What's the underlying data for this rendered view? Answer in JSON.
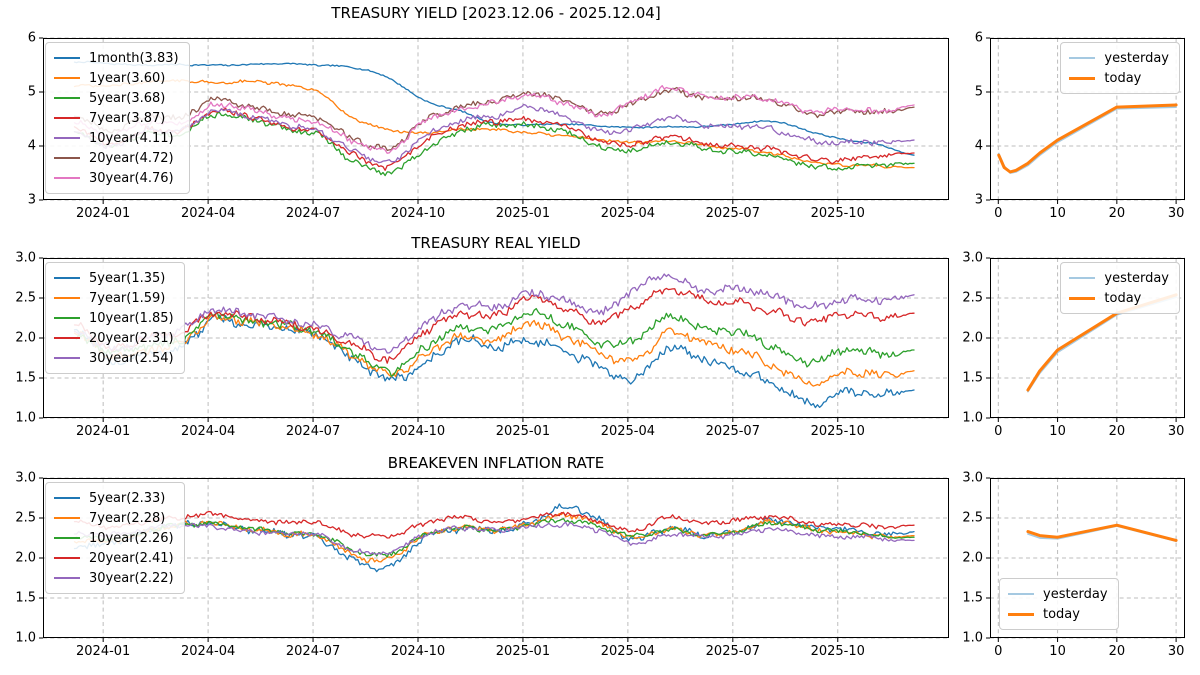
{
  "figure": {
    "background": "#ffffff"
  },
  "palette": {
    "blue": "#1f77b4",
    "orange": "#ff7f0e",
    "green": "#2ca02c",
    "red": "#d62728",
    "purple": "#9467bd",
    "brown": "#8c564b",
    "pink": "#e377c2",
    "yesterday_line": "#a5c9e1",
    "today_line": "#ff7f0e",
    "grid": "#bdbdbd",
    "spine": "#000000"
  },
  "chart_data": [
    {
      "id": "treasury-yield-main",
      "type": "line",
      "title": "TREASURY YIELD [2023.12.06 - 2025.12.04]",
      "x_unit": "months since 2023-12-06",
      "x": [
        0,
        1,
        2,
        3,
        4,
        5,
        6,
        7,
        8,
        9,
        10,
        11,
        12,
        13,
        14,
        15,
        16,
        17,
        18,
        19,
        20,
        21,
        22,
        23,
        24
      ],
      "xlim": [
        -0.9,
        25.0
      ],
      "xticks": [
        0.82,
        3.82,
        6.82,
        9.82,
        12.82,
        15.82,
        18.82,
        21.82
      ],
      "xtick_labels": [
        "2024-01",
        "2024-04",
        "2024-07",
        "2024-10",
        "2025-01",
        "2025-04",
        "2025-07",
        "2025-10"
      ],
      "ylim": [
        3,
        6
      ],
      "yticks": [
        3,
        4,
        5,
        6
      ],
      "ytick_labels": [
        "3",
        "4",
        "5",
        "6"
      ],
      "grid": true,
      "legend_position": "upper-left",
      "series": [
        {
          "name": "1month",
          "label": "1month(3.83)",
          "color": "#1f77b4",
          "noise": 0.012,
          "values": [
            5.55,
            5.53,
            5.5,
            5.5,
            5.5,
            5.51,
            5.52,
            5.5,
            5.45,
            5.25,
            4.85,
            4.65,
            4.42,
            4.4,
            4.4,
            4.37,
            4.35,
            4.35,
            4.36,
            4.42,
            4.45,
            4.28,
            4.12,
            4.02,
            3.83
          ]
        },
        {
          "name": "1year",
          "label": "1year(3.60)",
          "color": "#ff7f0e",
          "noise": 0.022,
          "values": [
            5.1,
            5.12,
            5.18,
            5.2,
            5.18,
            5.2,
            5.12,
            5.0,
            4.5,
            4.3,
            4.25,
            4.3,
            4.3,
            4.25,
            4.18,
            4.12,
            4.08,
            4.08,
            4.02,
            3.95,
            3.85,
            3.72,
            3.65,
            3.62,
            3.6
          ]
        },
        {
          "name": "5year",
          "label": "5year(3.68)",
          "color": "#2ca02c",
          "noise": 0.045,
          "values": [
            4.25,
            4.0,
            4.25,
            4.2,
            4.6,
            4.5,
            4.3,
            4.22,
            3.7,
            3.5,
            3.95,
            4.25,
            4.38,
            4.4,
            4.25,
            4.0,
            3.95,
            4.05,
            3.95,
            3.9,
            3.78,
            3.65,
            3.6,
            3.63,
            3.68
          ]
        },
        {
          "name": "7year",
          "label": "7year(3.87)",
          "color": "#d62728",
          "noise": 0.045,
          "values": [
            4.35,
            4.05,
            4.3,
            4.25,
            4.65,
            4.55,
            4.33,
            4.27,
            3.82,
            3.6,
            4.1,
            4.35,
            4.45,
            4.5,
            4.35,
            4.1,
            4.05,
            4.15,
            4.05,
            4.0,
            3.9,
            3.78,
            3.75,
            3.8,
            3.87
          ]
        },
        {
          "name": "10year",
          "label": "10year(4.11)",
          "color": "#9467bd",
          "noise": 0.045,
          "values": [
            4.25,
            4.0,
            4.3,
            4.25,
            4.68,
            4.55,
            4.38,
            4.3,
            3.9,
            3.68,
            4.2,
            4.45,
            4.55,
            4.75,
            4.52,
            4.28,
            4.35,
            4.5,
            4.4,
            4.38,
            4.28,
            4.12,
            4.08,
            4.05,
            4.11
          ]
        },
        {
          "name": "20year",
          "label": "20year(4.72)",
          "color": "#8c564b",
          "noise": 0.045,
          "values": [
            4.55,
            4.3,
            4.55,
            4.5,
            4.88,
            4.72,
            4.58,
            4.52,
            4.12,
            3.95,
            4.5,
            4.7,
            4.82,
            5.0,
            4.82,
            4.6,
            4.82,
            5.0,
            4.9,
            4.9,
            4.8,
            4.62,
            4.65,
            4.6,
            4.72
          ]
        },
        {
          "name": "30year",
          "label": "30year(4.76)",
          "color": "#e377c2",
          "noise": 0.045,
          "values": [
            4.42,
            4.2,
            4.45,
            4.4,
            4.78,
            4.68,
            4.5,
            4.45,
            4.08,
            3.9,
            4.48,
            4.65,
            4.8,
            4.95,
            4.78,
            4.58,
            4.85,
            5.05,
            4.92,
            4.92,
            4.82,
            4.65,
            4.68,
            4.62,
            4.76
          ]
        }
      ]
    },
    {
      "id": "treasury-real-yield-main",
      "type": "line",
      "title": "TREASURY REAL YIELD",
      "x_unit": "months since 2023-12-06",
      "x": [
        0,
        1,
        2,
        3,
        4,
        5,
        6,
        7,
        8,
        9,
        10,
        11,
        12,
        13,
        14,
        15,
        16,
        17,
        18,
        19,
        20,
        21,
        22,
        23,
        24
      ],
      "xlim": [
        -0.9,
        25.0
      ],
      "xticks": [
        0.82,
        3.82,
        6.82,
        9.82,
        12.82,
        15.82,
        18.82,
        21.82
      ],
      "xtick_labels": [
        "2024-01",
        "2024-04",
        "2024-07",
        "2024-10",
        "2025-01",
        "2025-04",
        "2025-07",
        "2025-10"
      ],
      "ylim": [
        1.0,
        3.0
      ],
      "yticks": [
        1.0,
        1.5,
        2.0,
        2.5,
        3.0
      ],
      "ytick_labels": [
        "1.0",
        "1.5",
        "2.0",
        "2.5",
        "3.0"
      ],
      "grid": true,
      "legend_position": "upper-left",
      "series": [
        {
          "name": "5year",
          "label": "5year(1.35)",
          "color": "#1f77b4",
          "noise": 0.05,
          "values": [
            2.1,
            1.75,
            1.8,
            1.85,
            2.25,
            2.15,
            2.1,
            2.05,
            1.7,
            1.48,
            1.7,
            1.95,
            1.88,
            2.0,
            1.8,
            1.65,
            1.5,
            1.85,
            1.75,
            1.6,
            1.4,
            1.2,
            1.32,
            1.28,
            1.35
          ]
        },
        {
          "name": "7year",
          "label": "7year(1.59)",
          "color": "#ff7f0e",
          "noise": 0.045,
          "values": [
            2.05,
            1.8,
            1.85,
            1.9,
            2.27,
            2.2,
            2.12,
            2.06,
            1.75,
            1.53,
            1.8,
            2.0,
            1.97,
            2.2,
            2.0,
            1.82,
            1.72,
            2.05,
            1.95,
            1.85,
            1.62,
            1.45,
            1.58,
            1.52,
            1.59
          ]
        },
        {
          "name": "10year",
          "label": "10year(1.85)",
          "color": "#2ca02c",
          "noise": 0.045,
          "values": [
            2.0,
            1.85,
            1.9,
            1.95,
            2.3,
            2.2,
            2.15,
            2.08,
            1.8,
            1.58,
            1.9,
            2.1,
            2.1,
            2.33,
            2.15,
            1.95,
            2.0,
            2.25,
            2.12,
            2.08,
            1.85,
            1.72,
            1.85,
            1.78,
            1.85
          ]
        },
        {
          "name": "20year",
          "label": "20year(2.31)",
          "color": "#d62728",
          "noise": 0.045,
          "values": [
            2.15,
            1.9,
            2.0,
            2.05,
            2.33,
            2.25,
            2.18,
            2.12,
            1.9,
            1.73,
            2.1,
            2.28,
            2.28,
            2.53,
            2.35,
            2.2,
            2.42,
            2.58,
            2.48,
            2.45,
            2.3,
            2.22,
            2.3,
            2.25,
            2.31
          ]
        },
        {
          "name": "30year",
          "label": "30year(2.54)",
          "color": "#9467bd",
          "noise": 0.045,
          "values": [
            2.08,
            1.88,
            2.0,
            2.08,
            2.38,
            2.28,
            2.22,
            2.16,
            1.98,
            1.83,
            2.18,
            2.38,
            2.38,
            2.58,
            2.45,
            2.33,
            2.62,
            2.75,
            2.6,
            2.62,
            2.5,
            2.42,
            2.48,
            2.45,
            2.54
          ]
        }
      ]
    },
    {
      "id": "breakeven-inflation-main",
      "type": "line",
      "title": "BREAKEVEN INFLATION RATE",
      "x_unit": "months since 2023-12-06",
      "x": [
        0,
        1,
        2,
        3,
        4,
        5,
        6,
        7,
        8,
        9,
        10,
        11,
        12,
        13,
        14,
        15,
        16,
        17,
        18,
        19,
        20,
        21,
        22,
        23,
        24
      ],
      "xlim": [
        -0.9,
        25.0
      ],
      "xticks": [
        0.82,
        3.82,
        6.82,
        9.82,
        12.82,
        15.82,
        18.82,
        21.82
      ],
      "xtick_labels": [
        "2024-01",
        "2024-04",
        "2024-07",
        "2024-10",
        "2025-01",
        "2025-04",
        "2025-07",
        "2025-10"
      ],
      "ylim": [
        1.0,
        3.0
      ],
      "yticks": [
        1.0,
        1.5,
        2.0,
        2.5,
        3.0
      ],
      "ytick_labels": [
        "1.0",
        "1.5",
        "2.0",
        "2.5",
        "3.0"
      ],
      "grid": true,
      "legend_position": "upper-left",
      "series": [
        {
          "name": "5year",
          "label": "5year(2.33)",
          "color": "#1f77b4",
          "noise": 0.035,
          "values": [
            2.12,
            2.2,
            2.32,
            2.4,
            2.45,
            2.35,
            2.3,
            2.25,
            1.95,
            1.88,
            2.28,
            2.35,
            2.35,
            2.45,
            2.62,
            2.48,
            2.25,
            2.35,
            2.3,
            2.35,
            2.45,
            2.4,
            2.35,
            2.28,
            2.33
          ]
        },
        {
          "name": "7year",
          "label": "7year(2.28)",
          "color": "#ff7f0e",
          "noise": 0.03,
          "values": [
            2.2,
            2.22,
            2.32,
            2.4,
            2.45,
            2.36,
            2.3,
            2.28,
            2.02,
            1.98,
            2.3,
            2.36,
            2.35,
            2.44,
            2.52,
            2.44,
            2.26,
            2.34,
            2.3,
            2.34,
            2.44,
            2.38,
            2.32,
            2.26,
            2.28
          ]
        },
        {
          "name": "10year",
          "label": "10year(2.26)",
          "color": "#2ca02c",
          "noise": 0.025,
          "values": [
            2.25,
            2.25,
            2.33,
            2.4,
            2.44,
            2.36,
            2.31,
            2.3,
            2.08,
            2.04,
            2.3,
            2.36,
            2.35,
            2.42,
            2.46,
            2.4,
            2.28,
            2.34,
            2.3,
            2.34,
            2.43,
            2.38,
            2.33,
            2.27,
            2.26
          ]
        },
        {
          "name": "20year",
          "label": "20year(2.41)",
          "color": "#d62728",
          "noise": 0.025,
          "values": [
            2.45,
            2.4,
            2.45,
            2.5,
            2.56,
            2.46,
            2.44,
            2.45,
            2.28,
            2.28,
            2.44,
            2.5,
            2.45,
            2.5,
            2.54,
            2.46,
            2.35,
            2.5,
            2.45,
            2.48,
            2.5,
            2.45,
            2.42,
            2.38,
            2.41
          ]
        },
        {
          "name": "30year",
          "label": "30year(2.22)",
          "color": "#9467bd",
          "noise": 0.025,
          "values": [
            2.3,
            2.3,
            2.36,
            2.4,
            2.4,
            2.32,
            2.3,
            2.3,
            2.08,
            2.08,
            2.3,
            2.36,
            2.35,
            2.4,
            2.4,
            2.35,
            2.18,
            2.28,
            2.28,
            2.3,
            2.35,
            2.3,
            2.26,
            2.24,
            2.22
          ]
        }
      ]
    },
    {
      "id": "yield-curve-panel",
      "type": "line",
      "title": "",
      "x_unit": "maturity (years)",
      "x": [
        0.08,
        1,
        2,
        3,
        5,
        7,
        10,
        20,
        30
      ],
      "xlim": [
        -1.4,
        31.5
      ],
      "xticks": [
        0,
        10,
        20,
        30
      ],
      "xtick_labels": [
        "0",
        "10",
        "20",
        "30"
      ],
      "ylim": [
        3,
        6
      ],
      "yticks": [
        3,
        4,
        5,
        6
      ],
      "ytick_labels": [
        "3",
        "4",
        "5",
        "6"
      ],
      "grid": true,
      "legend_position": "upper-right",
      "series": [
        {
          "name": "yesterday",
          "label": "yesterday",
          "color": "#a5c9e1",
          "noise": 0,
          "width": 1.7,
          "values": [
            3.86,
            3.63,
            3.5,
            3.52,
            3.64,
            3.83,
            4.07,
            4.69,
            4.72
          ]
        },
        {
          "name": "today",
          "label": "today",
          "color": "#ff7f0e",
          "noise": 0,
          "width": 3,
          "values": [
            3.83,
            3.6,
            3.52,
            3.55,
            3.68,
            3.87,
            4.11,
            4.72,
            4.76
          ]
        }
      ]
    },
    {
      "id": "real-yield-curve-panel",
      "type": "line",
      "title": "",
      "x_unit": "maturity (years)",
      "x": [
        5,
        7,
        10,
        20,
        30
      ],
      "xlim": [
        -1.4,
        31.5
      ],
      "xticks": [
        0,
        10,
        20,
        30
      ],
      "xtick_labels": [
        "0",
        "10",
        "20",
        "30"
      ],
      "ylim": [
        1.0,
        3.0
      ],
      "yticks": [
        1.0,
        1.5,
        2.0,
        2.5,
        3.0
      ],
      "ytick_labels": [
        "1.0",
        "1.5",
        "2.0",
        "2.5",
        "3.0"
      ],
      "grid": true,
      "legend_position": "upper-right",
      "series": [
        {
          "name": "yesterday",
          "label": "yesterday",
          "color": "#a5c9e1",
          "noise": 0,
          "width": 1.7,
          "values": [
            1.33,
            1.56,
            1.82,
            2.29,
            2.51
          ]
        },
        {
          "name": "today",
          "label": "today",
          "color": "#ff7f0e",
          "noise": 0,
          "width": 3,
          "values": [
            1.35,
            1.59,
            1.85,
            2.31,
            2.54
          ]
        }
      ]
    },
    {
      "id": "breakeven-curve-panel",
      "type": "line",
      "title": "",
      "x_unit": "maturity (years)",
      "x": [
        5,
        7,
        10,
        20,
        30
      ],
      "xlim": [
        -1.4,
        31.5
      ],
      "xticks": [
        0,
        10,
        20,
        30
      ],
      "xtick_labels": [
        "0",
        "10",
        "20",
        "30"
      ],
      "ylim": [
        1.0,
        3.0
      ],
      "yticks": [
        1.0,
        1.5,
        2.0,
        2.5,
        3.0
      ],
      "ytick_labels": [
        "1.0",
        "1.5",
        "2.0",
        "2.5",
        "3.0"
      ],
      "grid": true,
      "legend_position": "lower-left",
      "series": [
        {
          "name": "yesterday",
          "label": "yesterday",
          "color": "#a5c9e1",
          "noise": 0,
          "width": 1.7,
          "values": [
            2.3,
            2.25,
            2.24,
            2.4,
            2.21
          ]
        },
        {
          "name": "today",
          "label": "today",
          "color": "#ff7f0e",
          "noise": 0,
          "width": 3,
          "values": [
            2.33,
            2.28,
            2.26,
            2.41,
            2.22
          ]
        }
      ]
    }
  ]
}
